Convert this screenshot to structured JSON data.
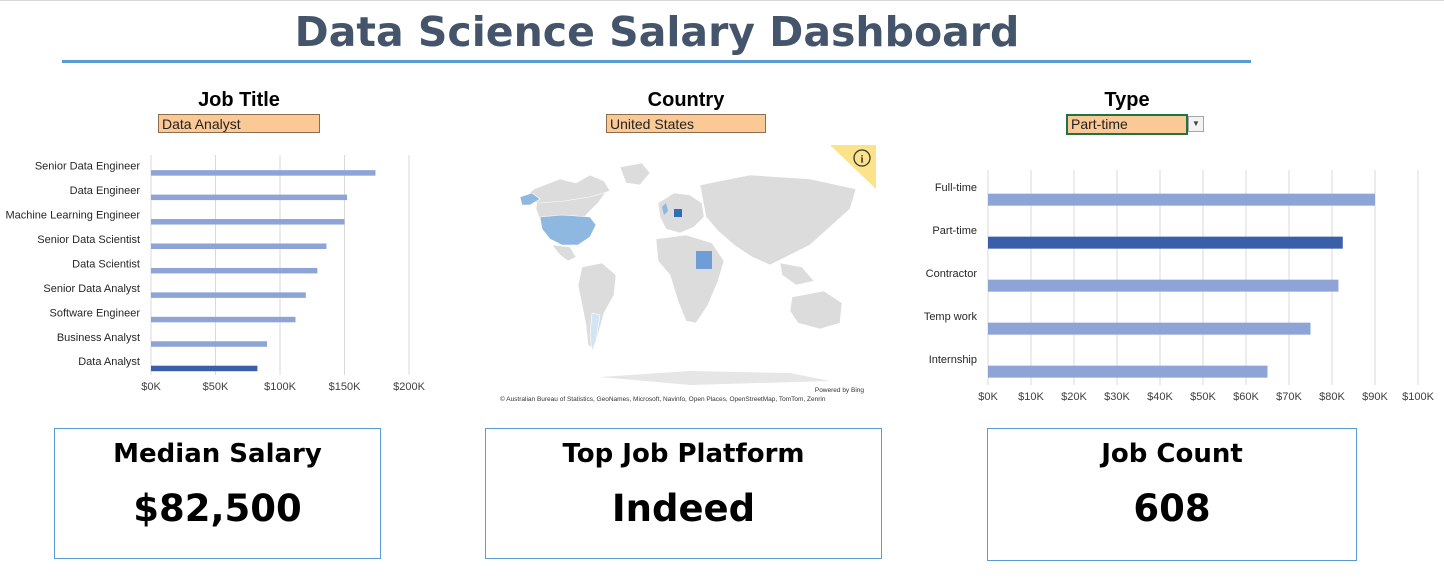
{
  "title": "Data Science Salary Dashboard",
  "filters": {
    "job_title": {
      "label": "Job Title",
      "value": "Data Analyst"
    },
    "country": {
      "label": "Country",
      "value": "United States"
    },
    "type": {
      "label": "Type",
      "value": "Part-time"
    }
  },
  "colors": {
    "bar": "#8ea4d6",
    "highlight": "#3a5fa8",
    "accent": "#5b9bd5",
    "filter_fill": "#fbc995",
    "title": "#44546a"
  },
  "chart_data": [
    {
      "type": "bar",
      "orientation": "horizontal",
      "categories": [
        "Senior Data Engineer",
        "Data Engineer",
        "Machine Learning Engineer",
        "Senior Data Scientist",
        "Data Scientist",
        "Senior Data Analyst",
        "Software Engineer",
        "Business Analyst",
        "Data Analyst"
      ],
      "values": [
        174000,
        152000,
        150000,
        136000,
        129000,
        120000,
        112000,
        90000,
        82500
      ],
      "highlight": "Data Analyst",
      "xlim": [
        0,
        200000
      ],
      "xticks": [
        "$0K",
        "$50K",
        "$100K",
        "$150K",
        "$200K"
      ],
      "grid": true,
      "legend": "none"
    },
    {
      "type": "bar",
      "orientation": "horizontal",
      "categories": [
        "Full-time",
        "Part-time",
        "Contractor",
        "Temp work",
        "Internship"
      ],
      "values": [
        90000,
        82500,
        81500,
        75000,
        65000
      ],
      "highlight": "Part-time",
      "xlim": [
        0,
        100000
      ],
      "xticks": [
        "$0K",
        "$10K",
        "$20K",
        "$30K",
        "$40K",
        "$50K",
        "$60K",
        "$70K",
        "$80K",
        "$90K",
        "$100K"
      ],
      "grid": true,
      "legend": "none"
    }
  ],
  "map": {
    "info_icon": "info-icon",
    "powered_by": "Powered by Bing",
    "attribution": "© Australian Bureau of Statistics, GeoNames, Microsoft, Navinfo, Open Places, OpenStreetMap, TomTom, Zenrin"
  },
  "kpis": [
    {
      "title": "Median Salary",
      "value": "$82,500"
    },
    {
      "title": "Top Job Platform",
      "value": "Indeed"
    },
    {
      "title": "Job Count",
      "value": "608"
    }
  ]
}
